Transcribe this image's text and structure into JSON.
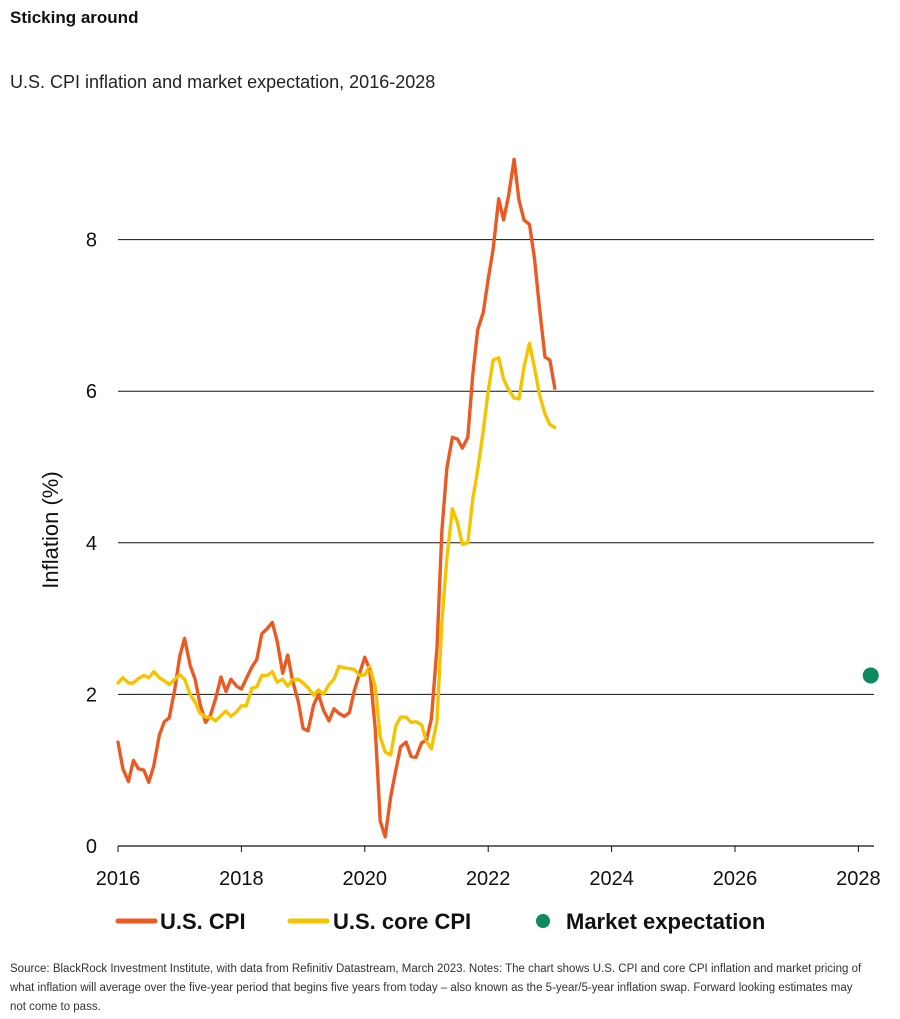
{
  "header": {
    "title": "Sticking around",
    "subtitle": "U.S. CPI inflation and market expectation, 2016-2028"
  },
  "footnote": "Source: BlackRock Investment Institute, with data from Refinitiv Datastream, March 2023. Notes: The chart shows U.S. CPI and core CPI inflation and market pricing of what inflation will average over the five-year period that begins five years from today – also known as the 5-year/5-year inflation swap. Forward looking estimates may not come to pass.",
  "chart_data": {
    "type": "line",
    "title": "U.S. CPI inflation and market expectation, 2016-2028",
    "xlabel": "",
    "ylabel": "Inflation (%)",
    "xlim": [
      2016,
      2028.5
    ],
    "ylim": [
      0,
      9.2
    ],
    "xticks": [
      2016,
      2018,
      2020,
      2022,
      2024,
      2026,
      2028
    ],
    "yticks": [
      0,
      2,
      4,
      6,
      8
    ],
    "grid": "horizontal",
    "legend_position": "bottom",
    "colors": {
      "cpi": "#ea5b24",
      "core": "#f5c400",
      "expectation": "#0f8a5f"
    },
    "series": [
      {
        "name": "U.S. CPI",
        "color": "#ea5b24",
        "points": [
          [
            2016.0,
            1.37
          ],
          [
            2016.08,
            1.02
          ],
          [
            2016.17,
            0.85
          ],
          [
            2016.25,
            1.13
          ],
          [
            2016.33,
            1.02
          ],
          [
            2016.42,
            1.0
          ],
          [
            2016.5,
            0.84
          ],
          [
            2016.58,
            1.06
          ],
          [
            2016.67,
            1.46
          ],
          [
            2016.75,
            1.64
          ],
          [
            2016.83,
            1.69
          ],
          [
            2016.92,
            2.07
          ],
          [
            2017.0,
            2.5
          ],
          [
            2017.08,
            2.74
          ],
          [
            2017.17,
            2.38
          ],
          [
            2017.25,
            2.2
          ],
          [
            2017.33,
            1.87
          ],
          [
            2017.42,
            1.63
          ],
          [
            2017.5,
            1.73
          ],
          [
            2017.58,
            1.94
          ],
          [
            2017.67,
            2.23
          ],
          [
            2017.75,
            2.04
          ],
          [
            2017.83,
            2.2
          ],
          [
            2017.92,
            2.11
          ],
          [
            2018.0,
            2.07
          ],
          [
            2018.08,
            2.21
          ],
          [
            2018.17,
            2.36
          ],
          [
            2018.25,
            2.46
          ],
          [
            2018.33,
            2.8
          ],
          [
            2018.42,
            2.87
          ],
          [
            2018.5,
            2.95
          ],
          [
            2018.58,
            2.7
          ],
          [
            2018.67,
            2.28
          ],
          [
            2018.75,
            2.52
          ],
          [
            2018.83,
            2.18
          ],
          [
            2018.92,
            1.91
          ],
          [
            2019.0,
            1.55
          ],
          [
            2019.08,
            1.52
          ],
          [
            2019.17,
            1.86
          ],
          [
            2019.25,
            2.0
          ],
          [
            2019.33,
            1.79
          ],
          [
            2019.42,
            1.65
          ],
          [
            2019.5,
            1.81
          ],
          [
            2019.58,
            1.75
          ],
          [
            2019.67,
            1.71
          ],
          [
            2019.75,
            1.76
          ],
          [
            2019.83,
            2.05
          ],
          [
            2019.92,
            2.29
          ],
          [
            2020.0,
            2.49
          ],
          [
            2020.08,
            2.33
          ],
          [
            2020.17,
            1.54
          ],
          [
            2020.25,
            0.33
          ],
          [
            2020.33,
            0.12
          ],
          [
            2020.42,
            0.65
          ],
          [
            2020.5,
            0.99
          ],
          [
            2020.58,
            1.31
          ],
          [
            2020.67,
            1.37
          ],
          [
            2020.75,
            1.18
          ],
          [
            2020.83,
            1.17
          ],
          [
            2020.92,
            1.36
          ],
          [
            2021.0,
            1.4
          ],
          [
            2021.08,
            1.68
          ],
          [
            2021.17,
            2.62
          ],
          [
            2021.25,
            4.16
          ],
          [
            2021.33,
            4.99
          ],
          [
            2021.42,
            5.39
          ],
          [
            2021.5,
            5.37
          ],
          [
            2021.58,
            5.25
          ],
          [
            2021.67,
            5.39
          ],
          [
            2021.75,
            6.22
          ],
          [
            2021.83,
            6.81
          ],
          [
            2021.92,
            7.04
          ],
          [
            2022.0,
            7.48
          ],
          [
            2022.08,
            7.87
          ],
          [
            2022.17,
            8.54
          ],
          [
            2022.25,
            8.26
          ],
          [
            2022.33,
            8.58
          ],
          [
            2022.42,
            9.06
          ],
          [
            2022.5,
            8.52
          ],
          [
            2022.58,
            8.26
          ],
          [
            2022.67,
            8.2
          ],
          [
            2022.75,
            7.75
          ],
          [
            2022.83,
            7.11
          ],
          [
            2022.92,
            6.45
          ],
          [
            2023.0,
            6.41
          ],
          [
            2023.08,
            6.04
          ]
        ]
      },
      {
        "name": "U.S. core CPI",
        "color": "#f5c400",
        "points": [
          [
            2016.0,
            2.15
          ],
          [
            2016.08,
            2.22
          ],
          [
            2016.17,
            2.15
          ],
          [
            2016.25,
            2.15
          ],
          [
            2016.33,
            2.21
          ],
          [
            2016.42,
            2.25
          ],
          [
            2016.5,
            2.22
          ],
          [
            2016.58,
            2.3
          ],
          [
            2016.67,
            2.22
          ],
          [
            2016.75,
            2.18
          ],
          [
            2016.83,
            2.13
          ],
          [
            2016.92,
            2.2
          ],
          [
            2017.0,
            2.26
          ],
          [
            2017.08,
            2.2
          ],
          [
            2017.17,
            2.0
          ],
          [
            2017.25,
            1.9
          ],
          [
            2017.33,
            1.75
          ],
          [
            2017.42,
            1.7
          ],
          [
            2017.5,
            1.7
          ],
          [
            2017.58,
            1.65
          ],
          [
            2017.67,
            1.72
          ],
          [
            2017.75,
            1.78
          ],
          [
            2017.83,
            1.71
          ],
          [
            2017.92,
            1.77
          ],
          [
            2018.0,
            1.85
          ],
          [
            2018.08,
            1.85
          ],
          [
            2018.17,
            2.08
          ],
          [
            2018.25,
            2.1
          ],
          [
            2018.33,
            2.25
          ],
          [
            2018.42,
            2.25
          ],
          [
            2018.5,
            2.3
          ],
          [
            2018.58,
            2.16
          ],
          [
            2018.67,
            2.2
          ],
          [
            2018.75,
            2.11
          ],
          [
            2018.83,
            2.19
          ],
          [
            2018.92,
            2.2
          ],
          [
            2019.0,
            2.15
          ],
          [
            2019.08,
            2.09
          ],
          [
            2019.17,
            1.99
          ],
          [
            2019.25,
            2.06
          ],
          [
            2019.33,
            2.0
          ],
          [
            2019.42,
            2.13
          ],
          [
            2019.5,
            2.2
          ],
          [
            2019.58,
            2.37
          ],
          [
            2019.67,
            2.35
          ],
          [
            2019.75,
            2.34
          ],
          [
            2019.83,
            2.33
          ],
          [
            2019.92,
            2.25
          ],
          [
            2020.0,
            2.26
          ],
          [
            2020.08,
            2.37
          ],
          [
            2020.17,
            2.1
          ],
          [
            2020.25,
            1.44
          ],
          [
            2020.33,
            1.24
          ],
          [
            2020.42,
            1.2
          ],
          [
            2020.5,
            1.58
          ],
          [
            2020.58,
            1.7
          ],
          [
            2020.67,
            1.7
          ],
          [
            2020.75,
            1.63
          ],
          [
            2020.83,
            1.64
          ],
          [
            2020.92,
            1.6
          ],
          [
            2021.0,
            1.38
          ],
          [
            2021.08,
            1.28
          ],
          [
            2021.17,
            1.65
          ],
          [
            2021.25,
            2.96
          ],
          [
            2021.33,
            3.8
          ],
          [
            2021.42,
            4.45
          ],
          [
            2021.5,
            4.27
          ],
          [
            2021.58,
            3.98
          ],
          [
            2021.67,
            4.0
          ],
          [
            2021.75,
            4.58
          ],
          [
            2021.83,
            4.96
          ],
          [
            2021.92,
            5.48
          ],
          [
            2022.0,
            6.0
          ],
          [
            2022.08,
            6.41
          ],
          [
            2022.17,
            6.44
          ],
          [
            2022.25,
            6.16
          ],
          [
            2022.33,
            6.02
          ],
          [
            2022.42,
            5.91
          ],
          [
            2022.5,
            5.9
          ],
          [
            2022.58,
            6.32
          ],
          [
            2022.67,
            6.63
          ],
          [
            2022.75,
            6.31
          ],
          [
            2022.83,
            5.96
          ],
          [
            2022.92,
            5.7
          ],
          [
            2023.0,
            5.56
          ],
          [
            2023.08,
            5.52
          ]
        ]
      }
    ],
    "market_expectation": {
      "name": "Market expectation",
      "x": 2028.2,
      "y": 2.25,
      "color": "#0f8a5f"
    }
  }
}
